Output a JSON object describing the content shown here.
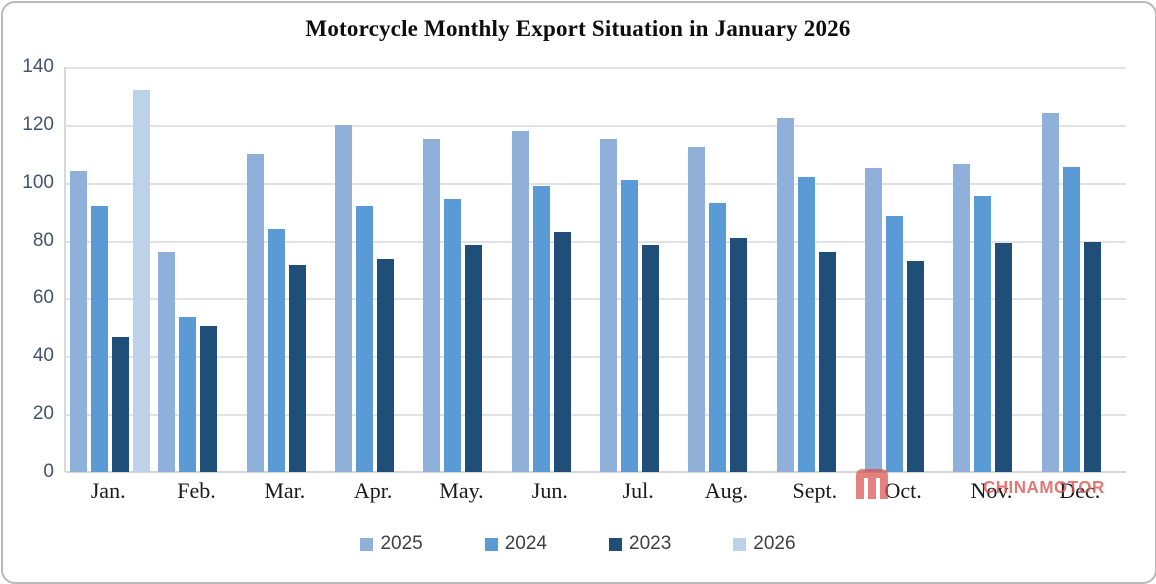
{
  "chart_data": {
    "type": "bar",
    "title": "Motorcycle Monthly Export Situation in January 2026",
    "categories": [
      "Jan.",
      "Feb.",
      "Mar.",
      "Apr.",
      "May.",
      "Jun.",
      "Jul.",
      "Aug.",
      "Sept.",
      "Oct.",
      "Nov.",
      "Dec."
    ],
    "series": [
      {
        "name": "2025",
        "color": "#8FB0D9",
        "values": [
          104,
          76,
          110,
          120,
          115,
          118,
          115,
          112.5,
          122.5,
          105,
          106.5,
          124
        ]
      },
      {
        "name": "2024",
        "color": "#5B9BD5",
        "values": [
          92,
          53.5,
          84,
          92,
          94.5,
          99,
          101,
          93,
          102,
          88.5,
          95.5,
          105.5
        ]
      },
      {
        "name": "2023",
        "color": "#1F4E79",
        "values": [
          46.5,
          50.5,
          71.5,
          73.5,
          78.5,
          83,
          78.5,
          81,
          76,
          73,
          79,
          79.5
        ]
      },
      {
        "name": "2026",
        "color": "#BDD2E8",
        "values": [
          132,
          null,
          null,
          null,
          null,
          null,
          null,
          null,
          null,
          null,
          null,
          null
        ]
      }
    ],
    "ylim": [
      0,
      140
    ],
    "ytick_step": 20,
    "yticks": [
      "0",
      "20",
      "40",
      "60",
      "80",
      "100",
      "120",
      "140"
    ],
    "xlabel": "",
    "ylabel": "",
    "grid": true,
    "legend_position": "bottom",
    "legend_entries": [
      "2025",
      "2024",
      "2023",
      "2026"
    ]
  },
  "watermark": {
    "text": "CHINAMOTOR",
    "logo": "chinamotor-m-logo",
    "color": "#d9534f"
  }
}
